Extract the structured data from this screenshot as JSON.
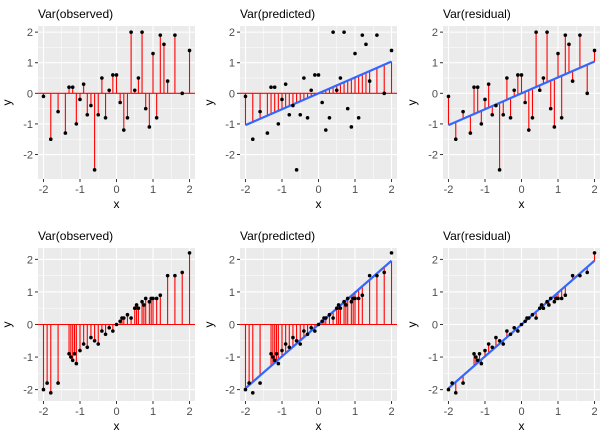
{
  "colors": {
    "panel_bg": "#EBEBEB",
    "grid": "#FFFFFF",
    "points": "#000000",
    "segments": "#FF0000",
    "baseline": "#FF0000",
    "fit_line": "#3366FF",
    "text": "#000000",
    "tick_text": "#4D4D4D"
  },
  "chart_data": [
    {
      "type": "scatter",
      "title": "Var(observed)",
      "xlabel": "x",
      "ylabel": "y",
      "xlim": [
        -2.15,
        2.15
      ],
      "ylim": [
        -2.8,
        2.2
      ],
      "xticks": [
        "-2",
        "-1",
        "0",
        "1",
        "2"
      ],
      "yticks": [
        "-2",
        "-1",
        "0",
        "1",
        "2"
      ],
      "grid": true,
      "segments_to": "zero",
      "fit_line": false,
      "baseline": 0,
      "x": [
        -2.0,
        -1.8,
        -1.6,
        -1.4,
        -1.3,
        -1.2,
        -1.1,
        -1.0,
        -0.9,
        -0.8,
        -0.7,
        -0.6,
        -0.5,
        -0.4,
        -0.3,
        -0.2,
        -0.1,
        0.0,
        0.1,
        0.2,
        0.3,
        0.4,
        0.5,
        0.6,
        0.7,
        0.8,
        0.9,
        1.0,
        1.1,
        1.2,
        1.3,
        1.4,
        1.6,
        1.8,
        2.0
      ],
      "y": [
        -0.1,
        -1.5,
        -0.6,
        -1.3,
        0.2,
        0.2,
        -1.0,
        -0.2,
        0.3,
        -0.7,
        -0.4,
        -2.5,
        -0.7,
        0.5,
        -0.8,
        0.1,
        0.6,
        0.6,
        -0.3,
        -1.2,
        -0.8,
        2.0,
        0.1,
        0.5,
        2.0,
        -0.5,
        -1.1,
        1.3,
        -0.8,
        1.9,
        1.6,
        0.4,
        1.9,
        0.0,
        1.4
      ]
    },
    {
      "type": "scatter",
      "title": "Var(predicted)",
      "xlabel": "x",
      "ylabel": "y",
      "xlim": [
        -2.15,
        2.15
      ],
      "ylim": [
        -2.8,
        2.2
      ],
      "xticks": [
        "-2",
        "-1",
        "0",
        "1",
        "2"
      ],
      "yticks": [
        "-2",
        "-1",
        "0",
        "1",
        "2"
      ],
      "grid": true,
      "segments_to": "fit_from_zero",
      "fit_line": true,
      "fit": [
        0.0,
        0.52
      ],
      "baseline": 0,
      "x": [
        -2.0,
        -1.8,
        -1.6,
        -1.4,
        -1.3,
        -1.2,
        -1.1,
        -1.0,
        -0.9,
        -0.8,
        -0.7,
        -0.6,
        -0.5,
        -0.4,
        -0.3,
        -0.2,
        -0.1,
        0.0,
        0.1,
        0.2,
        0.3,
        0.4,
        0.5,
        0.6,
        0.7,
        0.8,
        0.9,
        1.0,
        1.1,
        1.2,
        1.3,
        1.4,
        1.6,
        1.8,
        2.0
      ],
      "y": [
        -0.1,
        -1.5,
        -0.6,
        -1.3,
        0.2,
        0.2,
        -1.0,
        -0.2,
        0.3,
        -0.7,
        -0.4,
        -2.5,
        -0.7,
        0.5,
        -0.8,
        0.1,
        0.6,
        0.6,
        -0.3,
        -1.2,
        -0.8,
        2.0,
        0.1,
        0.5,
        2.0,
        -0.5,
        -1.1,
        1.3,
        -0.8,
        1.9,
        1.6,
        0.4,
        1.9,
        0.0,
        1.4
      ]
    },
    {
      "type": "scatter",
      "title": "Var(residual)",
      "xlabel": "x",
      "ylabel": "y",
      "xlim": [
        -2.15,
        2.15
      ],
      "ylim": [
        -2.8,
        2.2
      ],
      "xticks": [
        "-2",
        "-1",
        "0",
        "1",
        "2"
      ],
      "yticks": [
        "-2",
        "-1",
        "0",
        "1",
        "2"
      ],
      "grid": true,
      "segments_to": "fit",
      "fit_line": true,
      "fit": [
        0.0,
        0.52
      ],
      "x": [
        -2.0,
        -1.8,
        -1.6,
        -1.4,
        -1.3,
        -1.2,
        -1.1,
        -1.0,
        -0.9,
        -0.8,
        -0.7,
        -0.6,
        -0.5,
        -0.4,
        -0.3,
        -0.2,
        -0.1,
        0.0,
        0.1,
        0.2,
        0.3,
        0.4,
        0.5,
        0.6,
        0.7,
        0.8,
        0.9,
        1.0,
        1.1,
        1.2,
        1.3,
        1.4,
        1.6,
        1.8,
        2.0
      ],
      "y": [
        -0.1,
        -1.5,
        -0.6,
        -1.3,
        0.2,
        0.2,
        -1.0,
        -0.2,
        0.3,
        -0.7,
        -0.4,
        -2.5,
        -0.7,
        0.5,
        -0.8,
        0.1,
        0.6,
        0.6,
        -0.3,
        -1.2,
        -0.8,
        2.0,
        0.1,
        0.5,
        2.0,
        -0.5,
        -1.1,
        1.3,
        -0.8,
        1.9,
        1.6,
        0.4,
        1.9,
        0.0,
        1.4
      ]
    },
    {
      "type": "scatter",
      "title": "Var(observed)",
      "xlabel": "x",
      "ylabel": "y",
      "xlim": [
        -2.15,
        2.15
      ],
      "ylim": [
        -2.35,
        2.35
      ],
      "xticks": [
        "-2",
        "-1",
        "0",
        "1",
        "2"
      ],
      "yticks": [
        "-2",
        "-1",
        "0",
        "1",
        "2"
      ],
      "grid": true,
      "segments_to": "zero",
      "fit_line": false,
      "baseline": 0,
      "x": [
        -2.0,
        -1.9,
        -1.8,
        -1.6,
        -1.3,
        -1.25,
        -1.2,
        -1.15,
        -1.1,
        -1.0,
        -0.9,
        -0.8,
        -0.7,
        -0.6,
        -0.5,
        -0.4,
        -0.3,
        -0.2,
        -0.1,
        0.0,
        0.1,
        0.15,
        0.2,
        0.3,
        0.4,
        0.5,
        0.55,
        0.6,
        0.7,
        0.75,
        0.8,
        0.9,
        0.95,
        1.0,
        1.1,
        1.2,
        1.4,
        1.6,
        1.8,
        2.0
      ],
      "y": [
        -2.0,
        -1.8,
        -2.1,
        -1.8,
        -0.9,
        -1.0,
        -1.1,
        -0.9,
        -1.2,
        -0.8,
        -0.6,
        -0.7,
        -0.4,
        -0.5,
        -0.6,
        -0.2,
        -0.3,
        -0.1,
        -0.2,
        0.0,
        0.1,
        0.2,
        0.2,
        0.3,
        0.2,
        0.5,
        0.6,
        0.5,
        0.7,
        0.6,
        0.8,
        0.7,
        0.8,
        0.8,
        0.8,
        0.9,
        1.5,
        1.5,
        1.6,
        2.2
      ]
    },
    {
      "type": "scatter",
      "title": "Var(predicted)",
      "xlabel": "x",
      "ylabel": "y",
      "xlim": [
        -2.15,
        2.15
      ],
      "ylim": [
        -2.35,
        2.35
      ],
      "xticks": [
        "-2",
        "-1",
        "0",
        "1",
        "2"
      ],
      "yticks": [
        "-2",
        "-1",
        "0",
        "1",
        "2"
      ],
      "grid": true,
      "segments_to": "fit_from_zero",
      "fit_line": true,
      "fit": [
        0.0,
        0.98
      ],
      "baseline": 0,
      "x": [
        -2.0,
        -1.9,
        -1.8,
        -1.6,
        -1.3,
        -1.25,
        -1.2,
        -1.15,
        -1.1,
        -1.0,
        -0.9,
        -0.8,
        -0.7,
        -0.6,
        -0.5,
        -0.4,
        -0.3,
        -0.2,
        -0.1,
        0.0,
        0.1,
        0.15,
        0.2,
        0.3,
        0.4,
        0.5,
        0.55,
        0.6,
        0.7,
        0.75,
        0.8,
        0.9,
        0.95,
        1.0,
        1.1,
        1.2,
        1.4,
        1.6,
        1.8,
        2.0
      ],
      "y": [
        -2.0,
        -1.8,
        -2.1,
        -1.8,
        -0.9,
        -1.0,
        -1.1,
        -0.9,
        -1.2,
        -0.8,
        -0.6,
        -0.7,
        -0.4,
        -0.5,
        -0.6,
        -0.2,
        -0.3,
        -0.1,
        -0.2,
        0.0,
        0.1,
        0.2,
        0.2,
        0.3,
        0.2,
        0.5,
        0.6,
        0.5,
        0.7,
        0.6,
        0.8,
        0.7,
        0.8,
        0.8,
        0.8,
        0.9,
        1.5,
        1.5,
        1.6,
        2.2
      ]
    },
    {
      "type": "scatter",
      "title": "Var(residual)",
      "xlabel": "x",
      "ylabel": "y",
      "xlim": [
        -2.15,
        2.15
      ],
      "ylim": [
        -2.35,
        2.35
      ],
      "xticks": [
        "-2",
        "-1",
        "0",
        "1",
        "2"
      ],
      "yticks": [
        "-2",
        "-1",
        "0",
        "1",
        "2"
      ],
      "grid": true,
      "segments_to": "fit",
      "fit_line": true,
      "fit": [
        0.0,
        0.98
      ],
      "x": [
        -2.0,
        -1.9,
        -1.8,
        -1.6,
        -1.3,
        -1.25,
        -1.2,
        -1.15,
        -1.1,
        -1.0,
        -0.9,
        -0.8,
        -0.7,
        -0.6,
        -0.5,
        -0.4,
        -0.3,
        -0.2,
        -0.1,
        0.0,
        0.1,
        0.15,
        0.2,
        0.3,
        0.4,
        0.5,
        0.55,
        0.6,
        0.7,
        0.75,
        0.8,
        0.9,
        0.95,
        1.0,
        1.1,
        1.2,
        1.4,
        1.6,
        1.8,
        2.0
      ],
      "y": [
        -2.0,
        -1.8,
        -2.1,
        -1.8,
        -0.9,
        -1.0,
        -1.1,
        -0.9,
        -1.2,
        -0.8,
        -0.6,
        -0.7,
        -0.4,
        -0.5,
        -0.6,
        -0.2,
        -0.3,
        -0.1,
        -0.2,
        0.0,
        0.1,
        0.2,
        0.2,
        0.3,
        0.2,
        0.5,
        0.6,
        0.5,
        0.7,
        0.6,
        0.8,
        0.7,
        0.8,
        0.8,
        0.8,
        0.9,
        1.5,
        1.5,
        1.6,
        2.2
      ]
    }
  ]
}
